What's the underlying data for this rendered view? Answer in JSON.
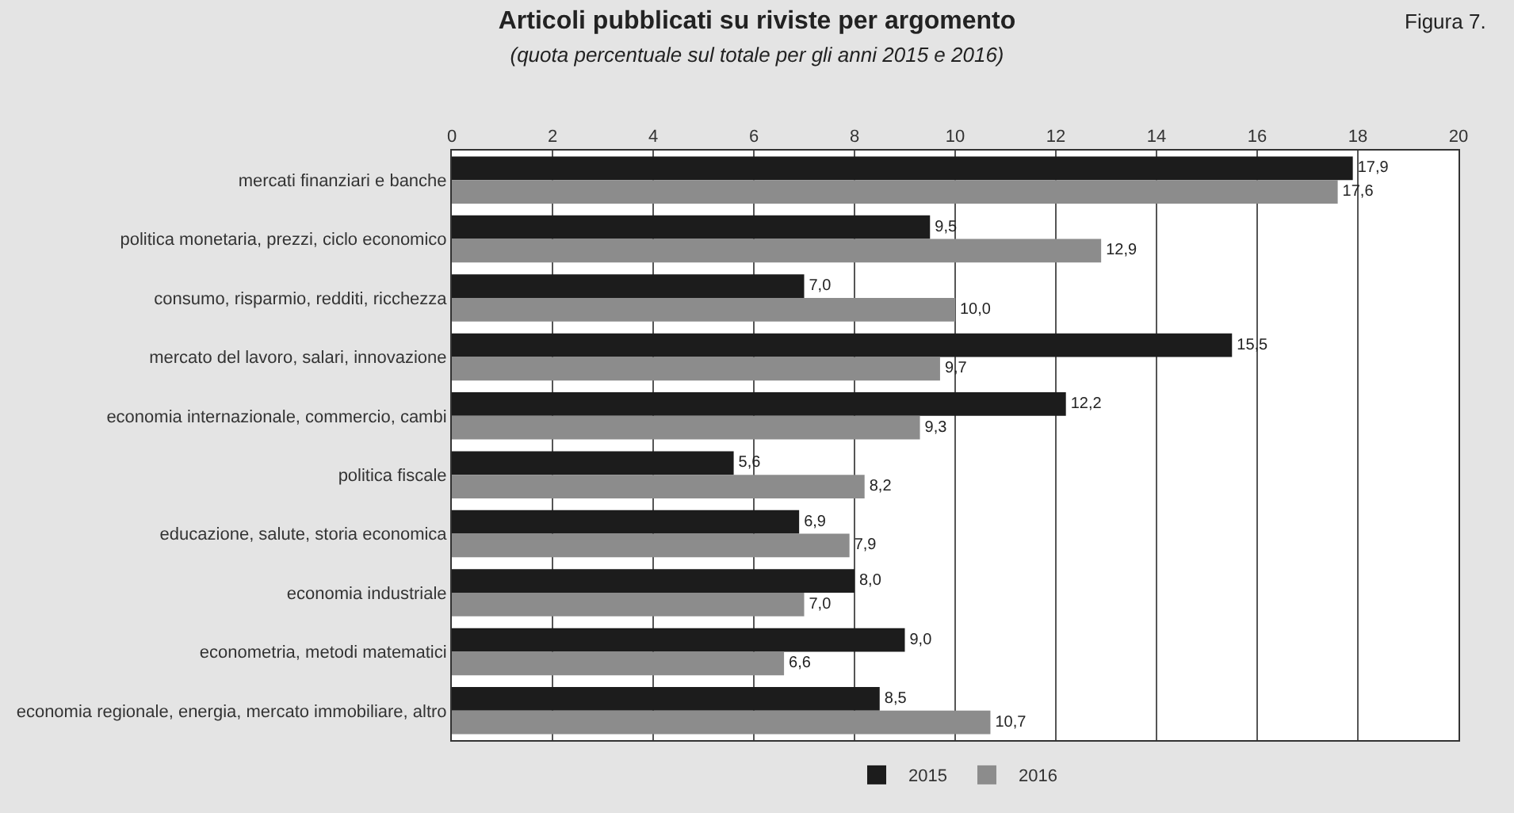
{
  "chart_data": {
    "type": "bar",
    "orientation": "horizontal",
    "title": "Articoli pubblicati su riviste per argomento",
    "subtitle": "(quota percentuale sul totale per gli anni 2015 e 2016)",
    "annotations": [
      "Figura 7."
    ],
    "categories": [
      "mercati finanziari e banche",
      "politica monetaria, prezzi, ciclo economico",
      "consumo, risparmio, redditi, ricchezza",
      "mercato del lavoro, salari, innovazione",
      "economia internazionale, commercio, cambi",
      "politica fiscale",
      "educazione, salute, storia economica",
      "economia industriale",
      "econometria, metodi matematici",
      "economia regionale, energia, mercato immobiliare, altro"
    ],
    "series": [
      {
        "name": "2015",
        "color": "#1c1c1c",
        "values": [
          17.9,
          9.5,
          7.0,
          15.5,
          12.2,
          5.6,
          6.9,
          8.0,
          9.0,
          8.5
        ],
        "value_labels": [
          "17,9",
          "9,5",
          "7,0",
          "15,5",
          "12,2",
          "5,6",
          "6,9",
          "8,0",
          "9,0",
          "8,5"
        ]
      },
      {
        "name": "2016",
        "color": "#8c8c8c",
        "values": [
          17.6,
          12.9,
          10.0,
          9.7,
          9.3,
          8.2,
          7.9,
          7.0,
          6.6,
          10.7
        ],
        "value_labels": [
          "17,6",
          "12,9",
          "10,0",
          "9,7",
          "9,3",
          "8,2",
          "7,9",
          "7,0",
          "6,6",
          "10,7"
        ]
      }
    ],
    "xlim": [
      0,
      20
    ],
    "xticks": [
      0,
      2,
      4,
      6,
      8,
      10,
      12,
      14,
      16,
      18,
      20
    ],
    "grid": "x",
    "legend": "bottom"
  }
}
